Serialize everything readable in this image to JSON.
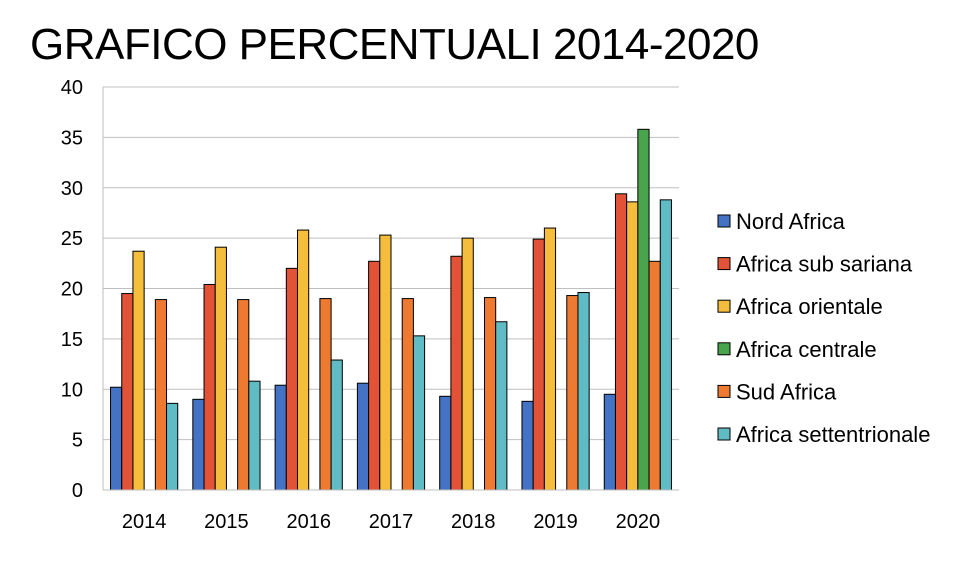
{
  "chart_data": {
    "type": "bar",
    "title": "GRAFICO PERCENTUALI 2014-2020",
    "xlabel": "",
    "ylabel": "",
    "categories": [
      "2014",
      "2015",
      "2016",
      "2017",
      "2018",
      "2019",
      "2020"
    ],
    "ylim": [
      0,
      40
    ],
    "yticks": [
      0,
      5,
      10,
      15,
      20,
      25,
      30,
      35,
      40
    ],
    "grid": true,
    "legend": "right",
    "series": [
      {
        "name": "Nord Africa",
        "color": "#4472c4",
        "values": [
          10.2,
          9.0,
          10.4,
          10.6,
          9.3,
          8.8,
          9.5
        ]
      },
      {
        "name": "Africa sub sariana",
        "color": "#e15236",
        "values": [
          19.5,
          20.4,
          22.0,
          22.7,
          23.2,
          24.9,
          29.4
        ]
      },
      {
        "name": "Africa orientale",
        "color": "#f5bd3c",
        "values": [
          23.7,
          24.1,
          25.8,
          25.3,
          25.0,
          26.0,
          28.6
        ]
      },
      {
        "name": "Africa centrale",
        "color": "#4aa34d",
        "values": [
          null,
          null,
          null,
          null,
          null,
          null,
          35.8
        ]
      },
      {
        "name": "Sud Africa",
        "color": "#ee7a31",
        "values": [
          18.9,
          18.9,
          19.0,
          19.0,
          19.1,
          19.3,
          22.7
        ]
      },
      {
        "name": "Africa settentrionale",
        "color": "#5fbcc4",
        "values": [
          8.6,
          10.8,
          12.9,
          15.3,
          16.7,
          19.6,
          28.8
        ]
      }
    ]
  }
}
